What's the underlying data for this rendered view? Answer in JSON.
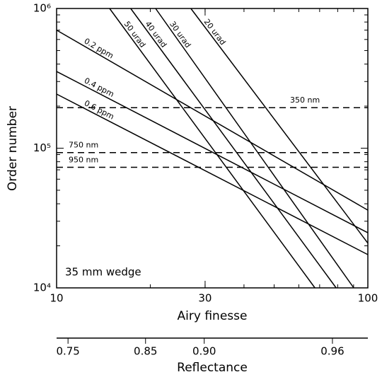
{
  "chart_data": {
    "type": "line",
    "xlabel": "Airy finesse",
    "ylabel": "Order number",
    "annotation": "35 mm wedge",
    "xscale": "log",
    "yscale": "log",
    "xlim": [
      10,
      100
    ],
    "ylim": [
      10000,
      1000000
    ],
    "xticks": [
      10,
      30,
      100
    ],
    "yticks": [
      {
        "value": 10000,
        "label": "10⁴"
      },
      {
        "value": 100000,
        "label": "10⁵"
      },
      {
        "value": 1000000,
        "label": "10⁶"
      }
    ],
    "x2label": "Reflectance",
    "x2ticks": [
      0.75,
      0.85,
      {
        "value": 0.9,
        "label": "0.90"
      },
      0.96
    ],
    "series": [
      {
        "name": "0.2 ppm",
        "color": "#000000",
        "x": [
          10,
          100
        ],
        "values": [
          700000,
          36000
        ]
      },
      {
        "name": "0.4 ppm",
        "color": "#000000",
        "x": [
          10,
          100
        ],
        "values": [
          354000,
          24800
        ]
      },
      {
        "name": "0.6 ppm",
        "color": "#000000",
        "x": [
          10,
          100
        ],
        "values": [
          244000,
          17300
        ]
      },
      {
        "name": "50 urad",
        "color": "#000000",
        "x": [
          14.8,
          67.6
        ],
        "values": [
          1000000,
          10000
        ]
      },
      {
        "name": "40 urad",
        "color": "#000000",
        "x": [
          17.3,
          79.1
        ],
        "values": [
          1000000,
          10000
        ]
      },
      {
        "name": "30 urad",
        "color": "#000000",
        "x": [
          20.8,
          90.1
        ],
        "values": [
          1000000,
          10000
        ]
      },
      {
        "name": "20 urad",
        "color": "#000000",
        "x": [
          27.0,
          100
        ],
        "values": [
          1000000,
          20900
        ]
      },
      {
        "name": "350 nm",
        "color": "#000000",
        "dashed": true,
        "x": [
          10,
          100
        ],
        "values": [
          195000,
          195000
        ]
      },
      {
        "name": "750 nm",
        "color": "#000000",
        "dashed": true,
        "x": [
          10,
          100
        ],
        "values": [
          93000,
          93000
        ]
      },
      {
        "name": "950 nm",
        "color": "#000000",
        "dashed": true,
        "x": [
          10,
          100
        ],
        "values": [
          73000,
          73000
        ]
      }
    ]
  }
}
